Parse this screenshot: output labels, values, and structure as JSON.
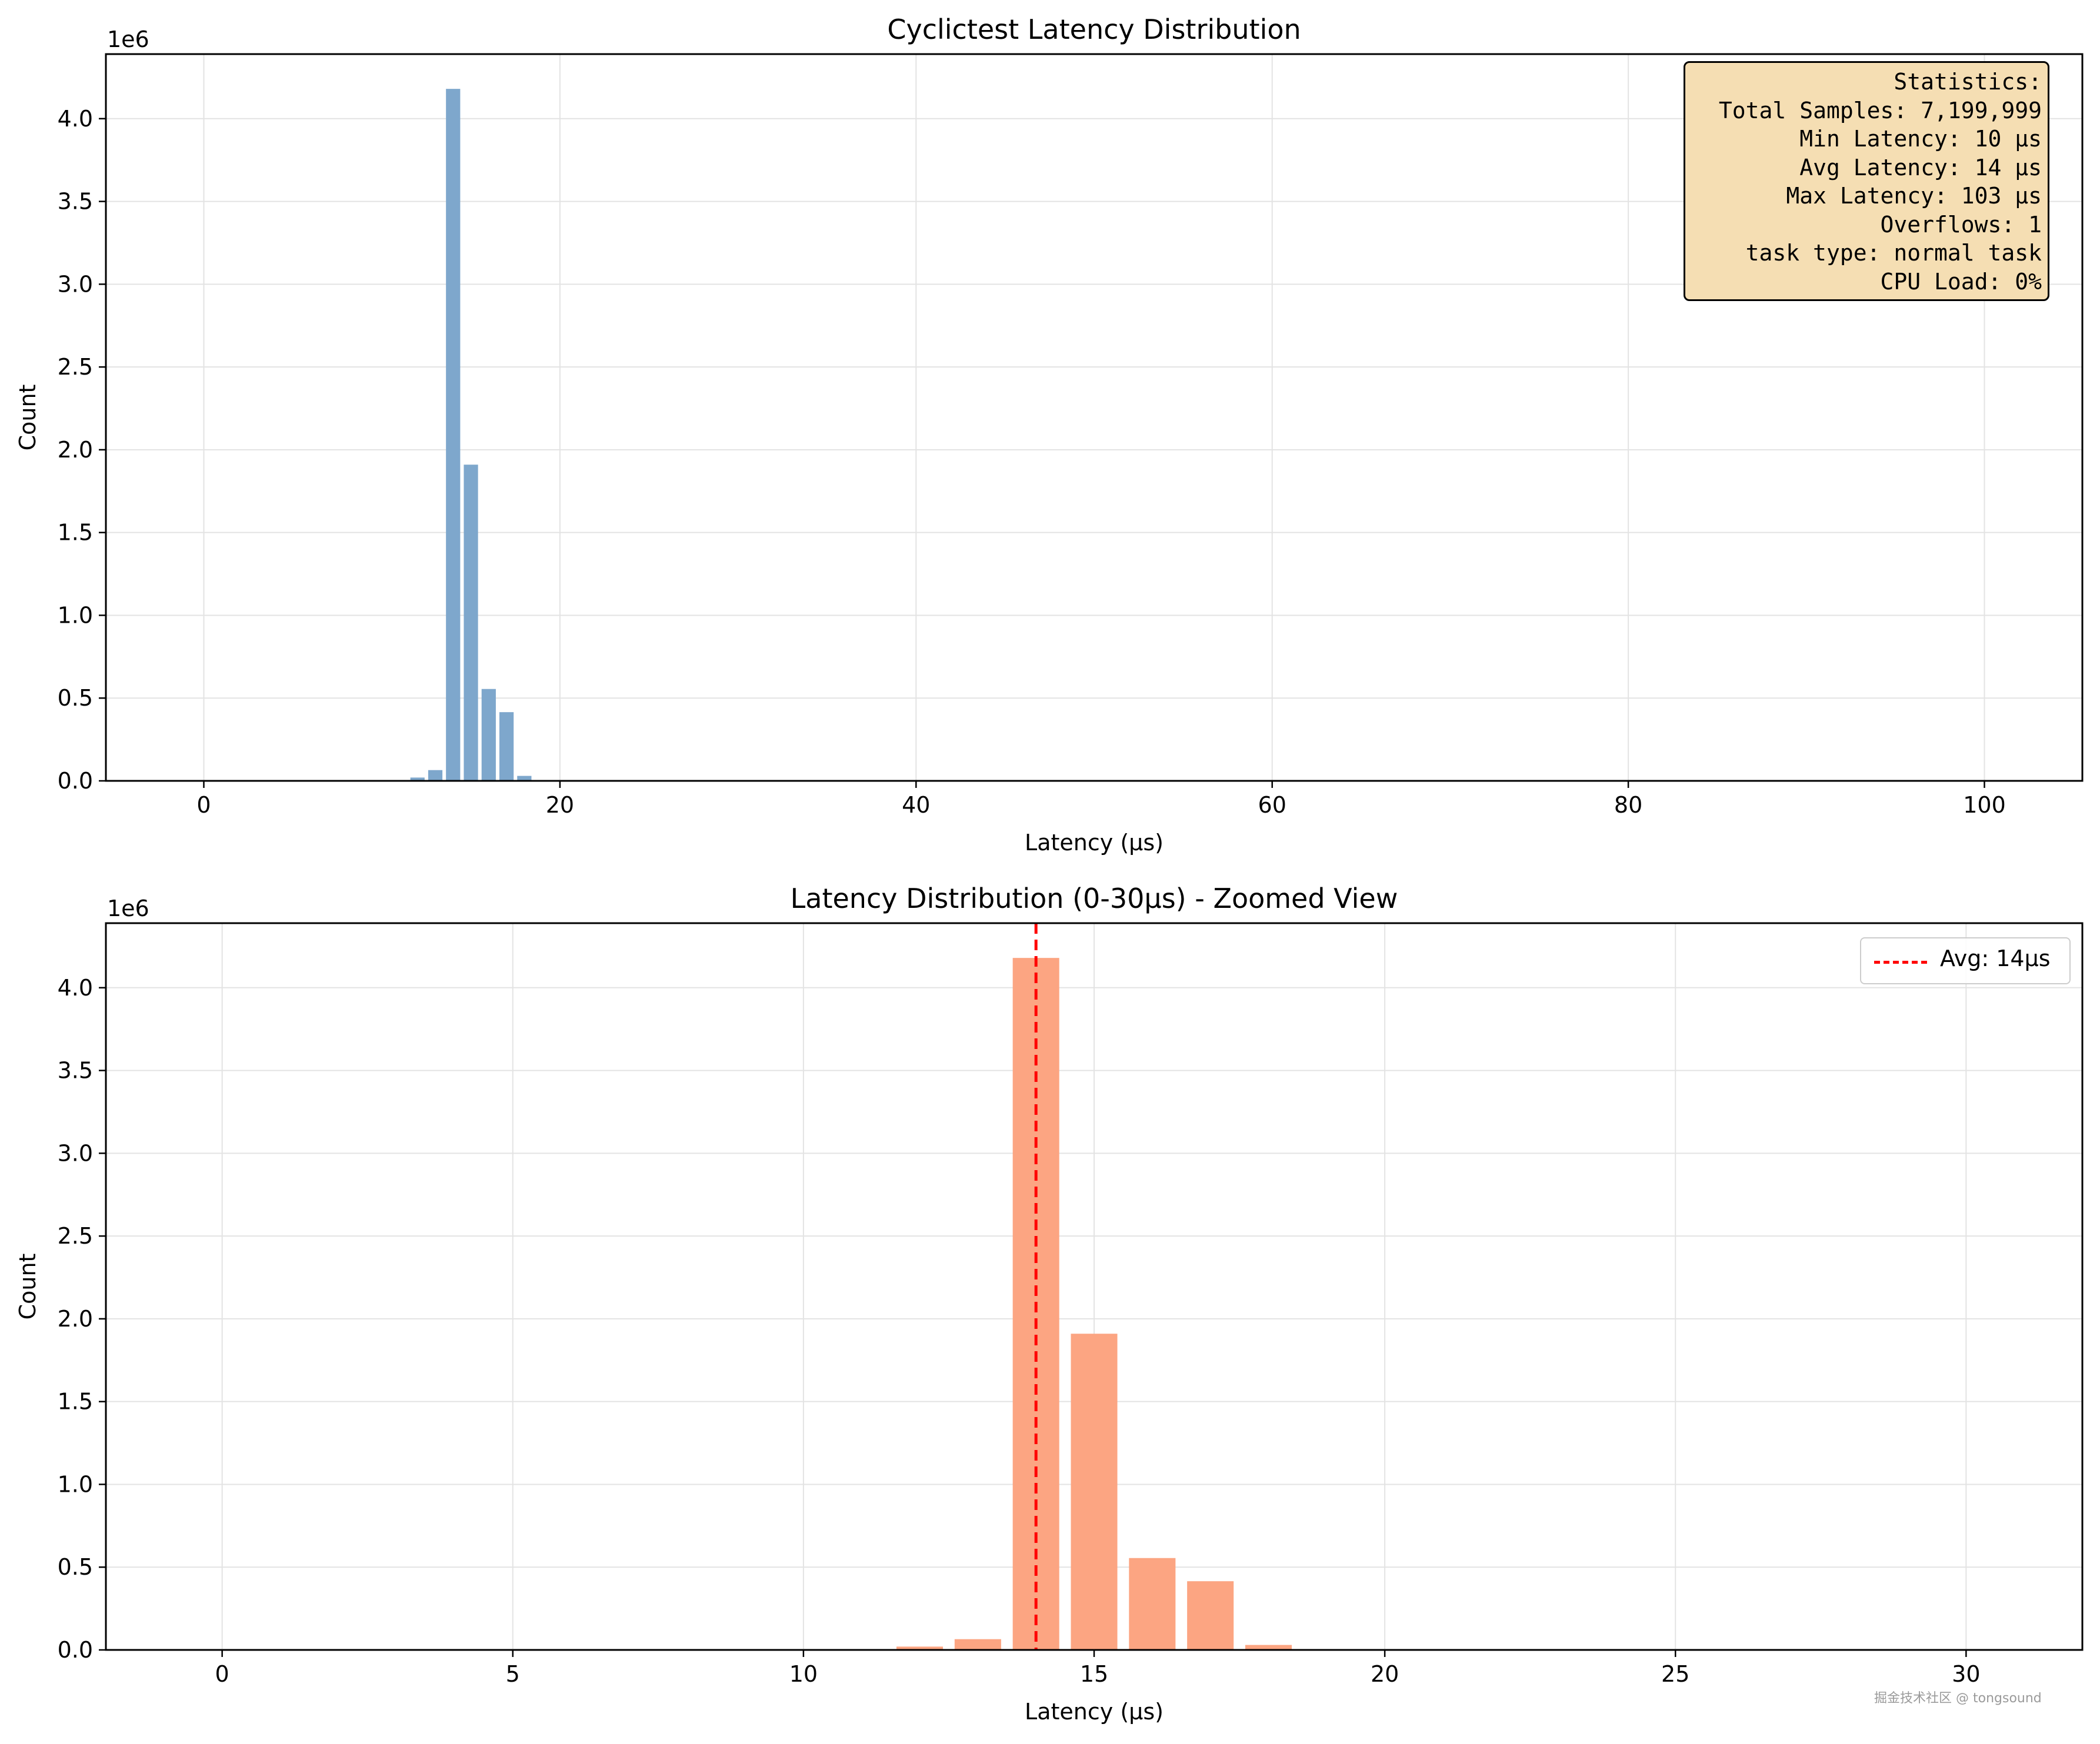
{
  "chart_data": [
    {
      "type": "bar",
      "title": "Cyclictest Latency Distribution",
      "xlabel": "Latency (µs)",
      "ylabel": "Count",
      "y_offset_label": "1e6",
      "xlim": [
        -5.5,
        105.5
      ],
      "ylim": [
        0,
        4.39
      ],
      "y_scale_note": "values in millions",
      "x_ticks": [
        0,
        20,
        40,
        60,
        80,
        100
      ],
      "y_ticks": [
        0.0,
        0.5,
        1.0,
        1.5,
        2.0,
        2.5,
        3.0,
        3.5,
        4.0
      ],
      "y_tick_labels": [
        "0.0",
        "0.5",
        "1.0",
        "1.5",
        "2.0",
        "2.5",
        "3.0",
        "3.5",
        "4.0"
      ],
      "grid": true,
      "bar_color": "#7ea7cc",
      "x": [
        12,
        13,
        14,
        15,
        16,
        17,
        18,
        29
      ],
      "values": [
        0.02,
        0.065,
        4.18,
        1.91,
        0.555,
        0.415,
        0.03,
        0.004
      ],
      "annotation_box": {
        "position": "top-right",
        "lines": [
          "Statistics:",
          "Total Samples: 7,199,999",
          "Min Latency: 10 µs",
          "Avg Latency: 14 µs",
          "Max Latency: 103 µs",
          "Overflows: 1",
          "task type: normal task",
          "CPU Load: 0%"
        ],
        "background": "#f5deb3"
      }
    },
    {
      "type": "bar",
      "title": "Latency Distribution (0-30µs) - Zoomed View",
      "xlabel": "Latency (µs)",
      "ylabel": "Count",
      "y_offset_label": "1e6",
      "xlim": [
        -2,
        32
      ],
      "ylim": [
        0,
        4.39
      ],
      "y_scale_note": "values in millions",
      "x_ticks": [
        0,
        5,
        10,
        15,
        20,
        25,
        30
      ],
      "y_ticks": [
        0.0,
        0.5,
        1.0,
        1.5,
        2.0,
        2.5,
        3.0,
        3.5,
        4.0
      ],
      "y_tick_labels": [
        "0.0",
        "0.5",
        "1.0",
        "1.5",
        "2.0",
        "2.5",
        "3.0",
        "3.5",
        "4.0"
      ],
      "grid": true,
      "bar_color": "#fca582",
      "x": [
        12,
        13,
        14,
        15,
        16,
        17,
        18
      ],
      "values": [
        0.02,
        0.065,
        4.18,
        1.91,
        0.555,
        0.415,
        0.03
      ],
      "avg_line": {
        "x": 14,
        "label": "Avg: 14µs",
        "color": "#ff0000",
        "style": "dashed"
      },
      "legend": {
        "position": "top-right",
        "entries": [
          "Avg: 14µs"
        ]
      }
    }
  ],
  "watermark": "掘金技术社区 @ tongsound"
}
